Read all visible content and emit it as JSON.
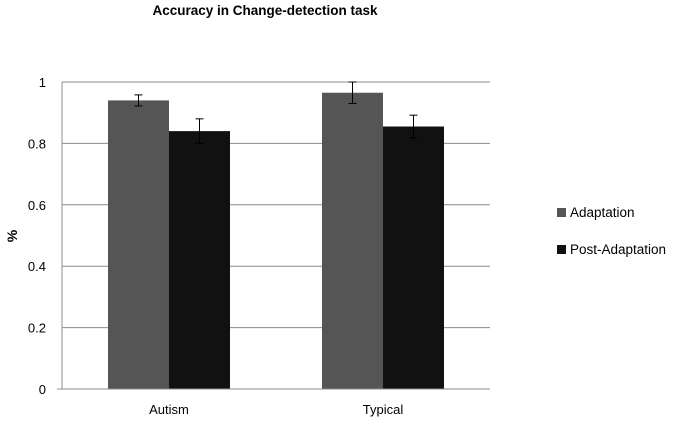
{
  "chart_data": {
    "type": "bar",
    "title": "Accuracy in Change-detection task",
    "xlabel": "",
    "ylabel": "%",
    "categories": [
      "Autism",
      "Typical"
    ],
    "series": [
      {
        "name": "Adaptation",
        "color": "#555555",
        "values": [
          0.94,
          0.965
        ],
        "errors": [
          0.018,
          0.035
        ]
      },
      {
        "name": "Post-Adaptation",
        "color": "#111111",
        "values": [
          0.84,
          0.855
        ],
        "errors": [
          0.04,
          0.037
        ]
      }
    ],
    "ylim": [
      0,
      1
    ],
    "yticks": [
      "0",
      "0.2",
      "0.4",
      "0.6",
      "0.8",
      "1"
    ],
    "grid": true,
    "legend_position": "right"
  }
}
